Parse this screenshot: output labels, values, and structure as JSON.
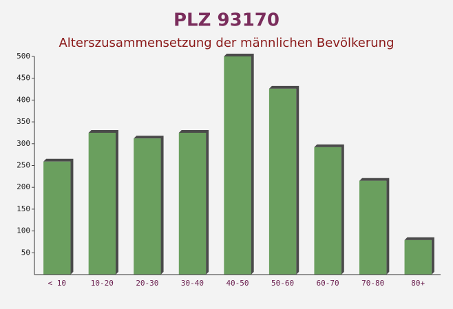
{
  "chart_data": {
    "type": "bar",
    "title": "PLZ 93170",
    "subtitle": "Alterszusammensetzung der männlichen Bevölkerung",
    "categories": [
      "< 10",
      "10-20",
      "20-30",
      "30-40",
      "40-50",
      "50-60",
      "60-70",
      "70-80",
      "80+"
    ],
    "values": [
      259,
      325,
      312,
      325,
      500,
      426,
      292,
      215,
      79
    ],
    "color": "#6a9f5e",
    "ylim": [
      0,
      500
    ],
    "yticks": [
      50,
      100,
      150,
      200,
      250,
      300,
      350,
      400,
      450,
      500
    ],
    "grid": false
  }
}
